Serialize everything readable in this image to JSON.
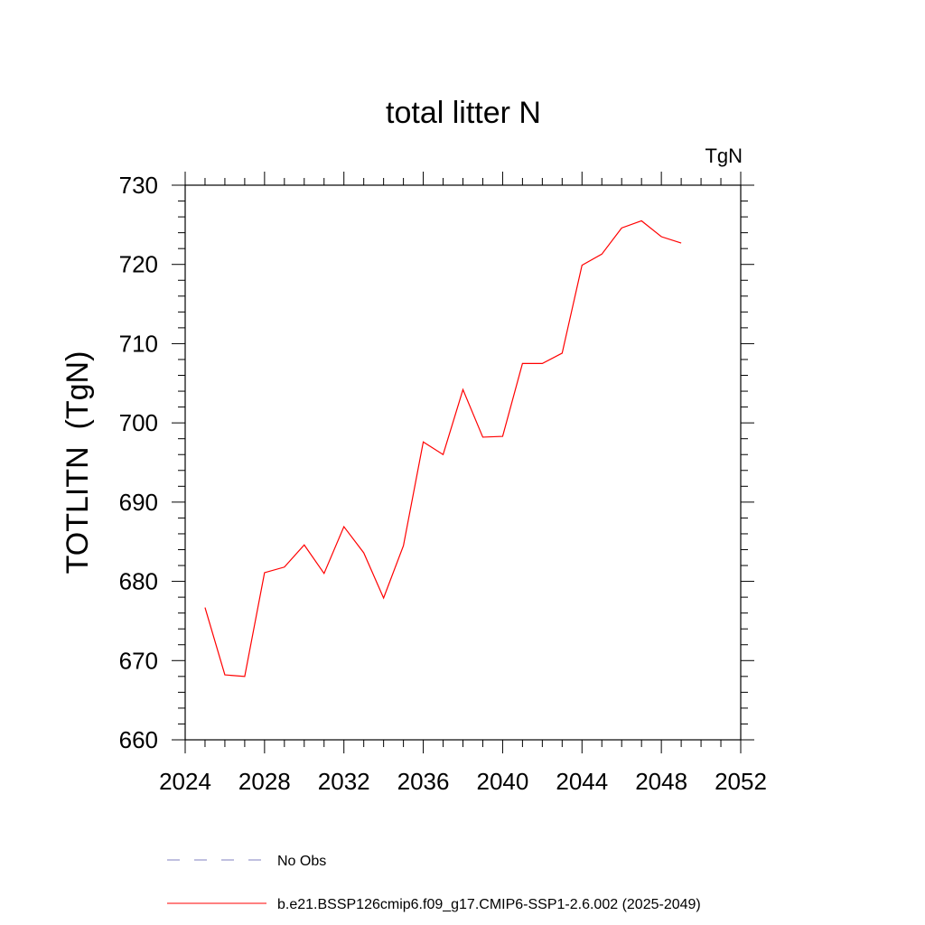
{
  "chart_data": {
    "type": "line",
    "title": "total litter N",
    "units_label": "TgN",
    "ylabel": "TOTLITN  (TgN)",
    "xlabel": "",
    "xlim": [
      2024,
      2052
    ],
    "ylim": [
      660,
      730
    ],
    "x_ticks": [
      2024,
      2028,
      2032,
      2036,
      2040,
      2044,
      2048,
      2052
    ],
    "y_ticks": [
      660,
      670,
      680,
      690,
      700,
      710,
      720,
      730
    ],
    "grid": false,
    "legend_placement": "bottom",
    "series": [
      {
        "name": "b.e21.BSSP126cmip6.f09_g17.CMIP6-SSP1-2.6.002 (2025-2049)",
        "color": "#ff0000",
        "style": "solid",
        "x": [
          2025,
          2026,
          2027,
          2028,
          2029,
          2030,
          2031,
          2032,
          2033,
          2034,
          2035,
          2036,
          2037,
          2038,
          2039,
          2040,
          2041,
          2042,
          2043,
          2044,
          2045,
          2046,
          2047,
          2048,
          2049
        ],
        "y": [
          676.7,
          668.2,
          668.0,
          681.1,
          681.8,
          684.6,
          681.0,
          686.9,
          683.6,
          677.9,
          684.5,
          697.6,
          696.0,
          704.2,
          698.2,
          698.3,
          707.5,
          707.5,
          708.8,
          719.9,
          721.3,
          724.6,
          725.5,
          723.5,
          722.7
        ]
      },
      {
        "name": "No Obs",
        "color": "#8080c0",
        "style": "dashed",
        "x": [],
        "y": []
      }
    ]
  }
}
